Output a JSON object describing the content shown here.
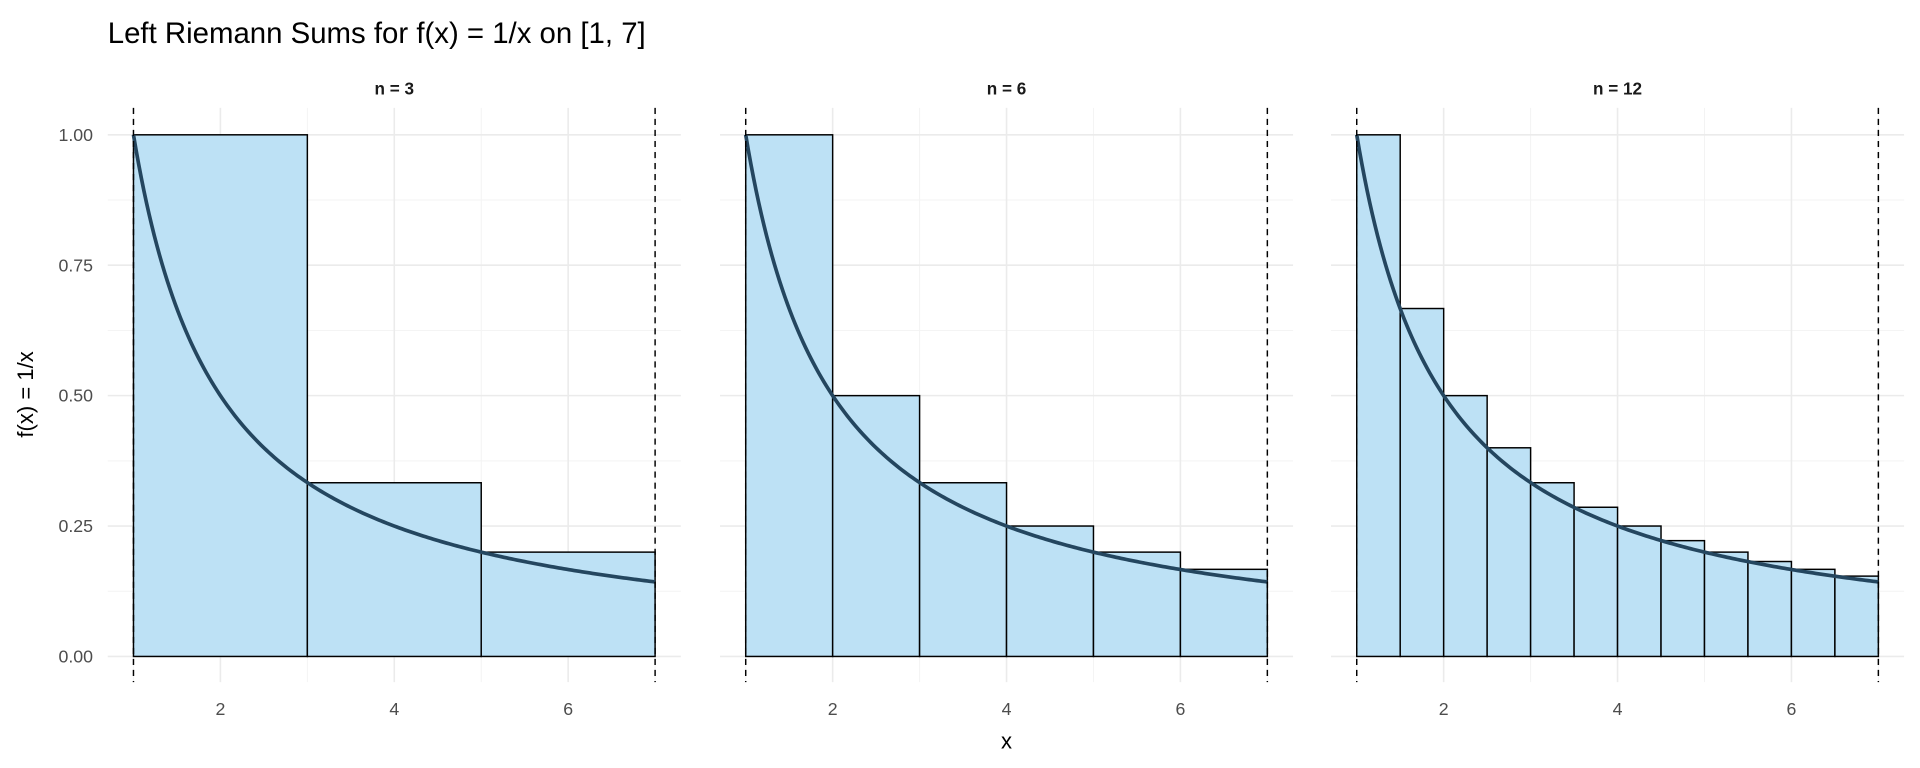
{
  "chart_data": {
    "type": "bar",
    "title": "Left Riemann Sums for f(x) = 1/x on [1, 7]",
    "xlabel": "x",
    "ylabel": "f(x) = 1/x",
    "xlim": [
      1,
      7
    ],
    "ylim": [
      0,
      1
    ],
    "x_ticks": [
      "2",
      "4",
      "6"
    ],
    "y_ticks": [
      "0.00",
      "0.25",
      "0.50",
      "0.75",
      "1.00"
    ],
    "grid": true,
    "interval_markers": [
      1,
      7
    ],
    "colors": {
      "bar_fill": "#BDE1F5",
      "bar_stroke": "#000000",
      "curve": "#24465F",
      "grid": "#EBEBEB",
      "interval_line": "#000000"
    },
    "panels": [
      {
        "label": "n = 3",
        "n": 3,
        "left_endpoints": [
          1,
          3,
          5
        ],
        "heights": [
          1.0,
          0.333,
          0.2
        ]
      },
      {
        "label": "n = 6",
        "n": 6,
        "left_endpoints": [
          1,
          2,
          3,
          4,
          5,
          6
        ],
        "heights": [
          1.0,
          0.5,
          0.333,
          0.25,
          0.2,
          0.167
        ]
      },
      {
        "label": "n = 12",
        "n": 12,
        "left_endpoints": [
          1,
          1.5,
          2,
          2.5,
          3,
          3.5,
          4,
          4.5,
          5,
          5.5,
          6,
          6.5
        ],
        "heights": [
          1.0,
          0.667,
          0.5,
          0.4,
          0.333,
          0.286,
          0.25,
          0.222,
          0.2,
          0.182,
          0.167,
          0.154
        ]
      }
    ],
    "curve": "f(x) = 1/x"
  }
}
